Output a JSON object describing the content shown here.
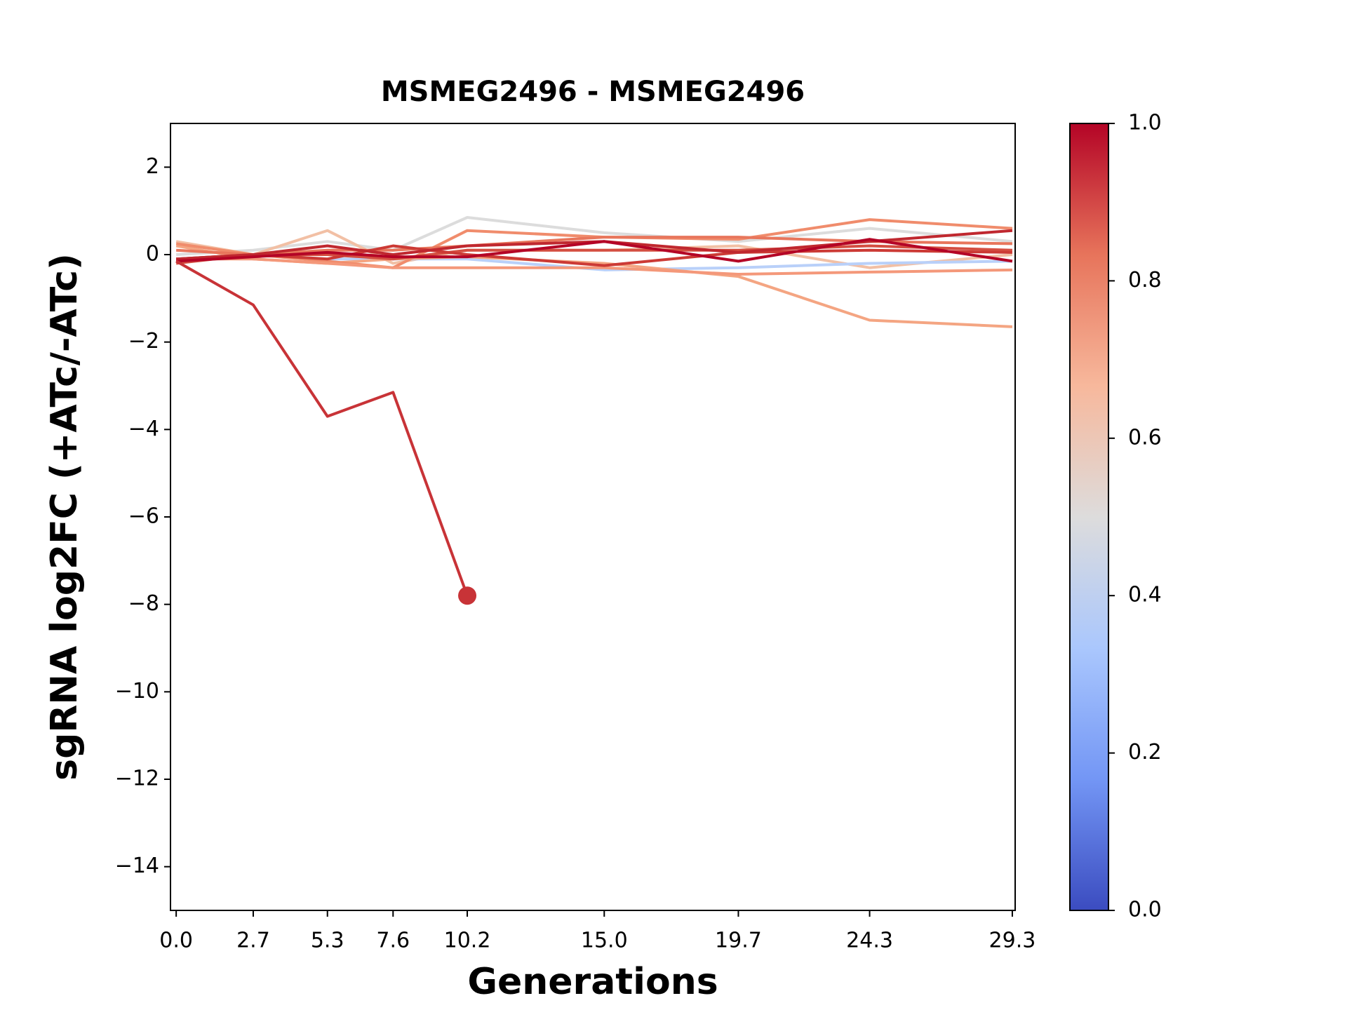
{
  "chart_data": {
    "type": "line",
    "title": "MSMEG2496 - MSMEG2496",
    "x_label": "Generations",
    "y_label": "sgRNA log2FC (+ATc/-ATc)",
    "x": [
      0,
      2.7,
      5.3,
      7.6,
      10.2,
      15,
      19.7,
      24.3,
      29.3
    ],
    "xlim": [
      -0.2,
      29.4
    ],
    "xticks": [
      {
        "value": 0,
        "label": "0.0"
      },
      2.7,
      5.3,
      7.6,
      10.2,
      {
        "value": 15,
        "label": "15.0"
      },
      19.7,
      24.3,
      29.3
    ],
    "ylim": [
      -15,
      3
    ],
    "yticks": [
      {
        "value": -14,
        "label": "−14"
      },
      {
        "value": -12,
        "label": "−12"
      },
      {
        "value": -10,
        "label": "−10"
      },
      {
        "value": -8,
        "label": "−8"
      },
      {
        "value": -6,
        "label": "−6"
      },
      {
        "value": -4,
        "label": "−4"
      },
      {
        "value": -2,
        "label": "−2"
      },
      0,
      2
    ],
    "series": [
      {
        "color": "#dcdcdc",
        "values": [
          0.0,
          0.1,
          0.3,
          0.1,
          0.85,
          0.5,
          0.3,
          0.6,
          0.3
        ]
      },
      {
        "color": "#f2c0a5",
        "values": [
          0.3,
          0.0,
          0.55,
          -0.2,
          0.1,
          0.1,
          0.2,
          -0.3,
          0.0
        ]
      },
      {
        "color": "#b9d0f9",
        "values": [
          -0.1,
          0.0,
          -0.1,
          -0.1,
          -0.1,
          -0.35,
          -0.3,
          -0.2,
          -0.15
        ]
      },
      {
        "color": "#f4a582",
        "values": [
          0.2,
          -0.1,
          -0.2,
          -0.1,
          -0.05,
          -0.2,
          -0.5,
          -1.5,
          -1.65
        ]
      },
      {
        "color": "#f08c6c",
        "values": [
          0.25,
          0.0,
          -0.15,
          -0.3,
          0.55,
          0.4,
          0.35,
          0.8,
          0.6
        ]
      },
      {
        "color": "#f4987a",
        "values": [
          -0.1,
          -0.1,
          -0.2,
          -0.3,
          -0.3,
          -0.3,
          -0.45,
          -0.4,
          -0.35
        ]
      },
      {
        "color": "#e8765c",
        "values": [
          0.1,
          0.0,
          0.1,
          0.1,
          0.2,
          0.4,
          0.4,
          0.3,
          0.25
        ]
      },
      {
        "color": "#d44e41",
        "values": [
          -0.2,
          0.0,
          0.0,
          -0.1,
          0.1,
          0.1,
          0.1,
          0.2,
          0.1
        ]
      },
      {
        "color": "#cc3a35",
        "values": [
          -0.1,
          0.0,
          -0.1,
          0.2,
          0.0,
          -0.25,
          0.05,
          0.1,
          0.05
        ]
      },
      {
        "color": "#c0282f",
        "values": [
          -0.1,
          0.0,
          0.2,
          0.0,
          0.2,
          0.3,
          0.05,
          0.3,
          0.55
        ]
      },
      {
        "color": "#b40426",
        "values": [
          -0.15,
          -0.05,
          0.05,
          -0.05,
          -0.05,
          0.3,
          -0.15,
          0.35,
          -0.15
        ]
      },
      {
        "color": "#c83337",
        "end_marker": true,
        "values": [
          -0.15,
          -1.15,
          -3.7,
          -3.15,
          -7.8,
          null,
          null,
          null,
          null
        ]
      }
    ],
    "colorbar": {
      "clim": [
        0,
        1
      ],
      "ticks": [
        {
          "value": 0,
          "label": "0.0"
        },
        {
          "value": 0.2,
          "label": "0.2"
        },
        {
          "value": 0.4,
          "label": "0.4"
        },
        {
          "value": 0.6,
          "label": "0.6"
        },
        {
          "value": 0.8,
          "label": "0.8"
        },
        {
          "value": 1,
          "label": "1.0"
        }
      ],
      "colors": [
        "#3b4cc0",
        "#7396f5",
        "#aac7fd",
        "#dddcdc",
        "#f7b89c",
        "#e7745b",
        "#b40426"
      ]
    }
  }
}
